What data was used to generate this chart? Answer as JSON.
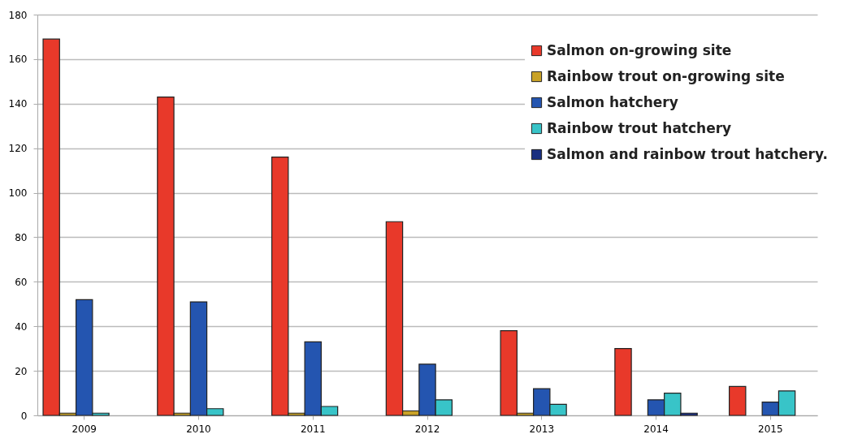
{
  "chart_data": {
    "type": "bar",
    "categories": [
      "2009",
      "2010",
      "2011",
      "2012",
      "2013",
      "2014",
      "2015"
    ],
    "series": [
      {
        "name": "Salmon on-growing site",
        "color": "#e8392a",
        "values": [
          169,
          143,
          116,
          87,
          38,
          30,
          13
        ]
      },
      {
        "name": "Rainbow trout on-growing site",
        "color": "#c9a227",
        "values": [
          1,
          1,
          1,
          2,
          1,
          null,
          null
        ]
      },
      {
        "name": "Salmon hatchery",
        "color": "#2455b0",
        "values": [
          52,
          51,
          33,
          23,
          12,
          7,
          6
        ]
      },
      {
        "name": "Rainbow trout hatchery",
        "color": "#38c4c8",
        "values": [
          1,
          3,
          4,
          7,
          5,
          10,
          11
        ]
      },
      {
        "name": "Salmon and rainbow trout hatchery.",
        "color": "#1a2f80",
        "values": [
          null,
          null,
          null,
          null,
          null,
          1,
          null
        ]
      }
    ],
    "ylim": [
      0,
      180
    ],
    "yticks": [
      0,
      20,
      40,
      60,
      80,
      100,
      120,
      140,
      160,
      180
    ],
    "grid": "y",
    "legend": "top right"
  }
}
